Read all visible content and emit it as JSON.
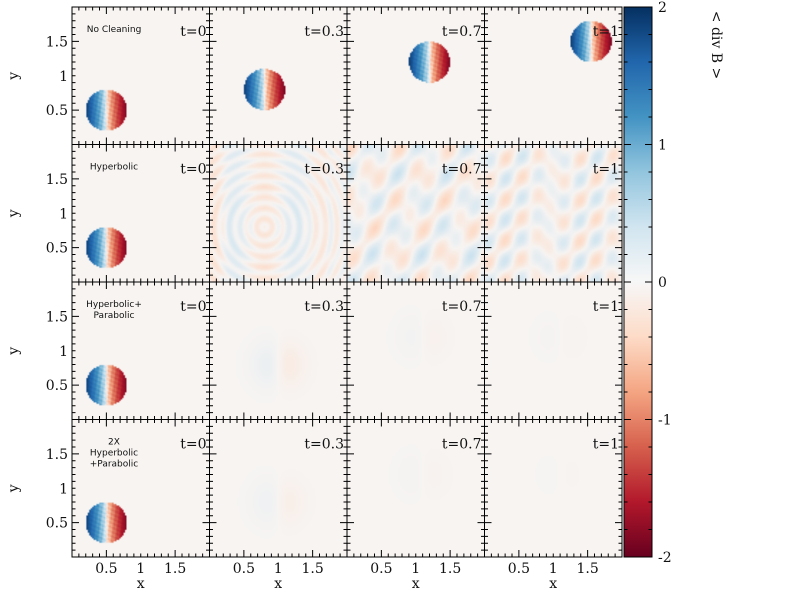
{
  "chart_data": {
    "type": "heatmap",
    "title": "",
    "xlabel": "x",
    "ylabel": "y",
    "xlim": [
      0,
      2
    ],
    "ylim": [
      0,
      2
    ],
    "x_ticks": [
      "0.5",
      "1",
      "1.5"
    ],
    "y_ticks": [
      "0.5",
      "1",
      "1.5"
    ],
    "colorbar": {
      "label": "< div B >",
      "range": [
        -2,
        2
      ],
      "ticks": [
        "2",
        "1",
        "0",
        "-1",
        "-2"
      ],
      "colormap": "RdBu"
    },
    "times": [
      "t=0",
      "t=0.3",
      "t=0.7",
      "t=1"
    ],
    "rows": [
      {
        "label_lines": [
          "No Cleaning"
        ],
        "kind": "advect",
        "centers_x": [
          0.5,
          0.8,
          1.2,
          1.55
        ],
        "centers_y": [
          0.5,
          0.8,
          1.2,
          1.5
        ],
        "amplitudes": [
          1,
          1,
          1,
          1
        ]
      },
      {
        "label_lines": [
          "Hyperbolic"
        ],
        "kind": "waves",
        "centers_x": [
          0.5,
          0.8,
          1.2,
          1.55
        ],
        "centers_y": [
          0.5,
          0.8,
          1.2,
          1.5
        ],
        "amplitudes": [
          1,
          0.25,
          0.22,
          0.2
        ]
      },
      {
        "label_lines": [
          "Hyperbolic+",
          "Parabolic"
        ],
        "kind": "diffuse",
        "centers_x": [
          0.5,
          1.0,
          1.1,
          1.1
        ],
        "centers_y": [
          0.5,
          0.8,
          1.2,
          1.2
        ],
        "amplitudes": [
          1,
          0.12,
          0.04,
          0.02
        ]
      },
      {
        "label_lines": [
          "2X",
          "Hyperbolic",
          "+Parabolic"
        ],
        "kind": "diffuse",
        "centers_x": [
          0.5,
          1.0,
          1.1,
          1.1
        ],
        "centers_y": [
          0.5,
          0.8,
          1.2,
          1.2
        ],
        "amplitudes": [
          1,
          0.08,
          0.03,
          0.01
        ]
      }
    ]
  }
}
